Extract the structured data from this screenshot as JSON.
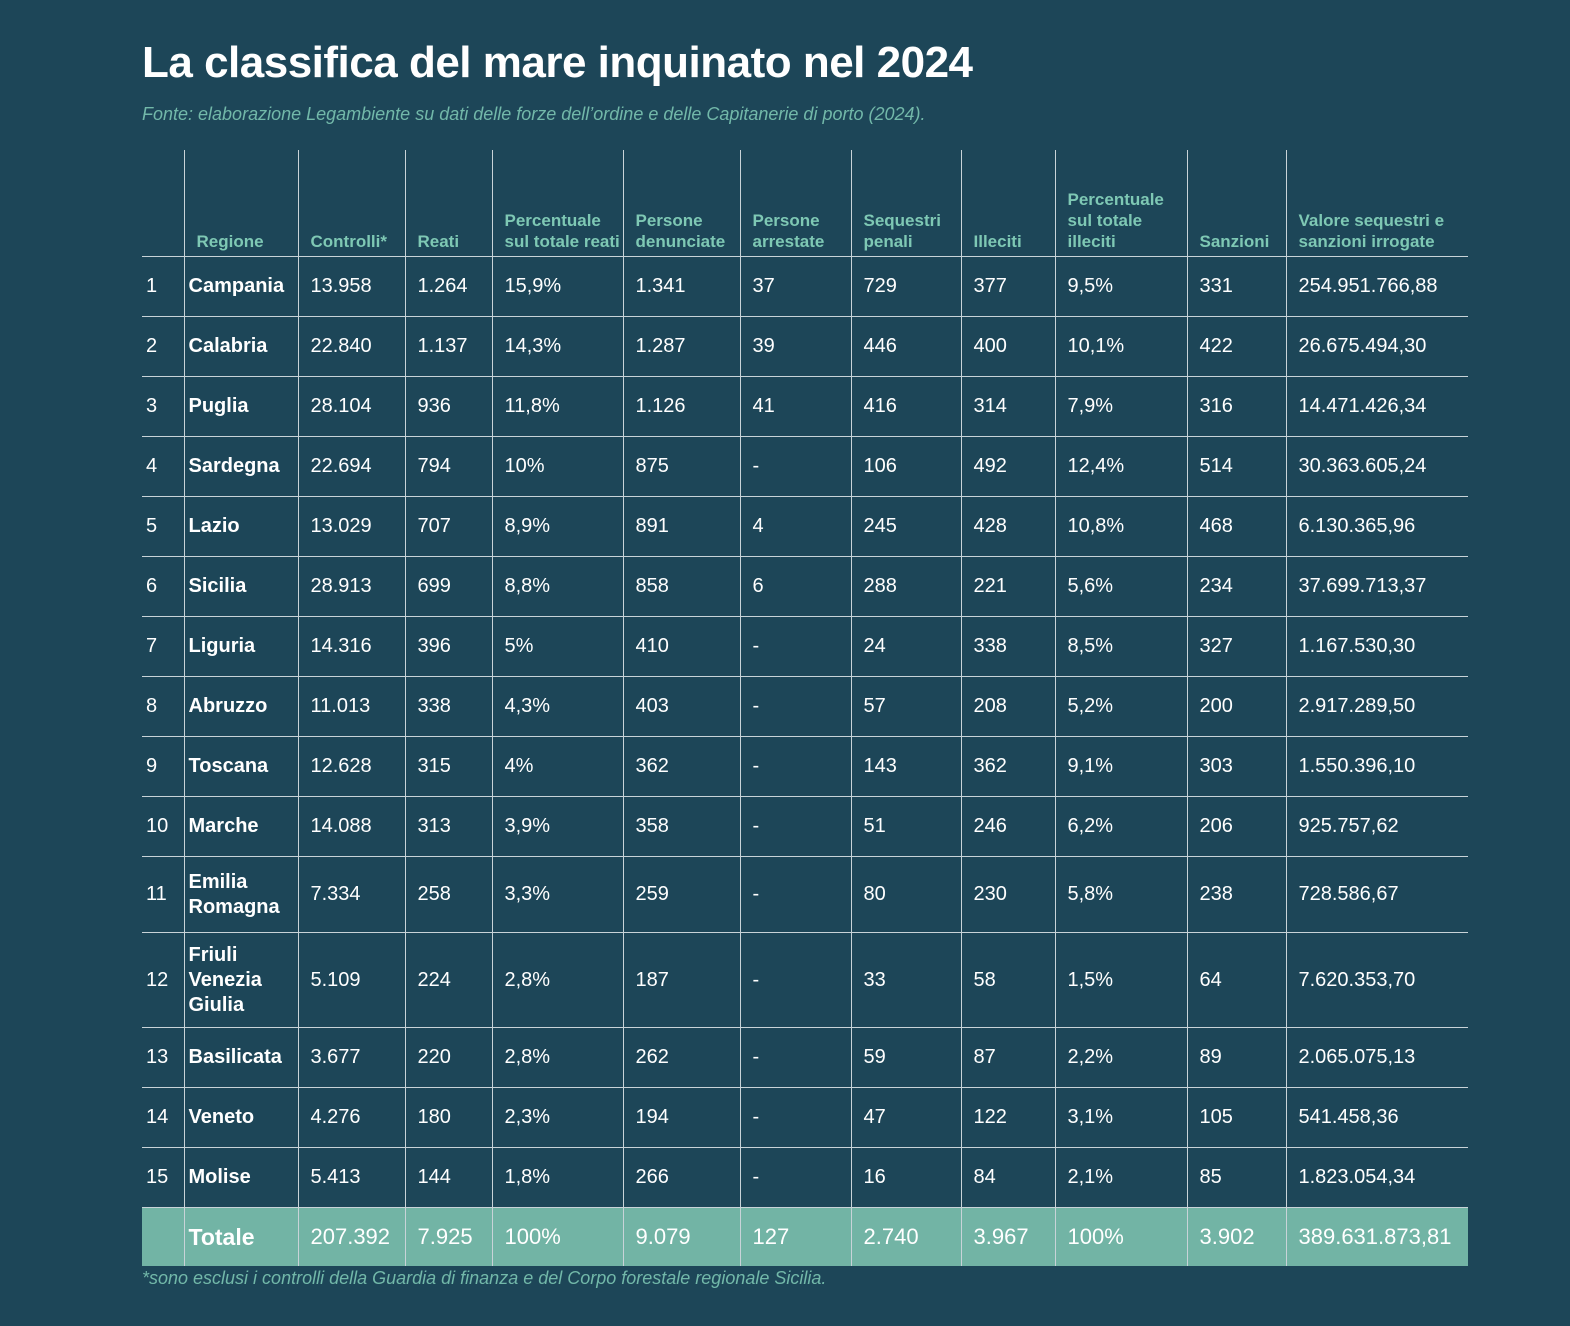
{
  "title": "La classifica del mare inquinato nel 2024",
  "source": "Fonte: elaborazione Legambiente su dati delle forze dell’ordine e delle Capitanerie di porto (2024).",
  "footnote": "*sono esclusi i controlli della Guardia di finanza e del Corpo forestale regionale Sicilia.",
  "colors": {
    "background": "#1d4658",
    "accent": "#72b8a9",
    "total_row": "#72b4a5",
    "text": "#ffffff"
  },
  "columns": [
    "",
    "Regione",
    "Controlli*",
    "Reati",
    "Percentuale sul totale reati",
    "Persone denunciate",
    "Persone arrestate",
    "Sequestri penali",
    "Illeciti",
    "Percentuale sul totale illeciti",
    "Sanzioni",
    "Valore sequestri e sanzioni irrogate"
  ],
  "rows": [
    [
      "1",
      "Campania",
      "13.958",
      "1.264",
      "15,9%",
      "1.341",
      "37",
      "729",
      "377",
      "9,5%",
      "331",
      "254.951.766,88"
    ],
    [
      "2",
      "Calabria",
      "22.840",
      "1.137",
      "14,3%",
      "1.287",
      "39",
      "446",
      "400",
      "10,1%",
      "422",
      "26.675.494,30"
    ],
    [
      "3",
      "Puglia",
      "28.104",
      "936",
      "11,8%",
      "1.126",
      "41",
      "416",
      "314",
      "7,9%",
      "316",
      "14.471.426,34"
    ],
    [
      "4",
      "Sardegna",
      "22.694",
      "794",
      "10%",
      "875",
      "-",
      "106",
      "492",
      "12,4%",
      "514",
      "30.363.605,24"
    ],
    [
      "5",
      "Lazio",
      "13.029",
      "707",
      "8,9%",
      "891",
      "4",
      "245",
      "428",
      "10,8%",
      "468",
      "6.130.365,96"
    ],
    [
      "6",
      "Sicilia",
      "28.913",
      "699",
      "8,8%",
      "858",
      "6",
      "288",
      "221",
      "5,6%",
      "234",
      "37.699.713,37"
    ],
    [
      "7",
      "Liguria",
      "14.316",
      "396",
      "5%",
      "410",
      "-",
      "24",
      "338",
      "8,5%",
      "327",
      "1.167.530,30"
    ],
    [
      "8",
      "Abruzzo",
      "11.013",
      "338",
      "4,3%",
      "403",
      "-",
      "57",
      "208",
      "5,2%",
      "200",
      "2.917.289,50"
    ],
    [
      "9",
      "Toscana",
      "12.628",
      "315",
      "4%",
      "362",
      "-",
      "143",
      "362",
      "9,1%",
      "303",
      "1.550.396,10"
    ],
    [
      "10",
      "Marche",
      "14.088",
      "313",
      "3,9%",
      "358",
      "-",
      "51",
      "246",
      "6,2%",
      "206",
      "925.757,62"
    ],
    [
      "11",
      "Emilia Romagna",
      "7.334",
      "258",
      "3,3%",
      "259",
      "-",
      "80",
      "230",
      "5,8%",
      "238",
      "728.586,67"
    ],
    [
      "12",
      "Friuli Venezia Giulia",
      "5.109",
      "224",
      "2,8%",
      "187",
      "-",
      "33",
      "58",
      "1,5%",
      "64",
      "7.620.353,70"
    ],
    [
      "13",
      "Basilicata",
      "3.677",
      "220",
      "2,8%",
      "262",
      "-",
      "59",
      "87",
      "2,2%",
      "89",
      "2.065.075,13"
    ],
    [
      "14",
      "Veneto",
      "4.276",
      "180",
      "2,3%",
      "194",
      "-",
      "47",
      "122",
      "3,1%",
      "105",
      "541.458,36"
    ],
    [
      "15",
      "Molise",
      "5.413",
      "144",
      "1,8%",
      "266",
      "-",
      "16",
      "84",
      "2,1%",
      "85",
      "1.823.054,34"
    ]
  ],
  "total": [
    "",
    "Totale",
    "207.392",
    "7.925",
    "100%",
    "9.079",
    "127",
    "2.740",
    "3.967",
    "100%",
    "3.902",
    "389.631.873,81"
  ]
}
